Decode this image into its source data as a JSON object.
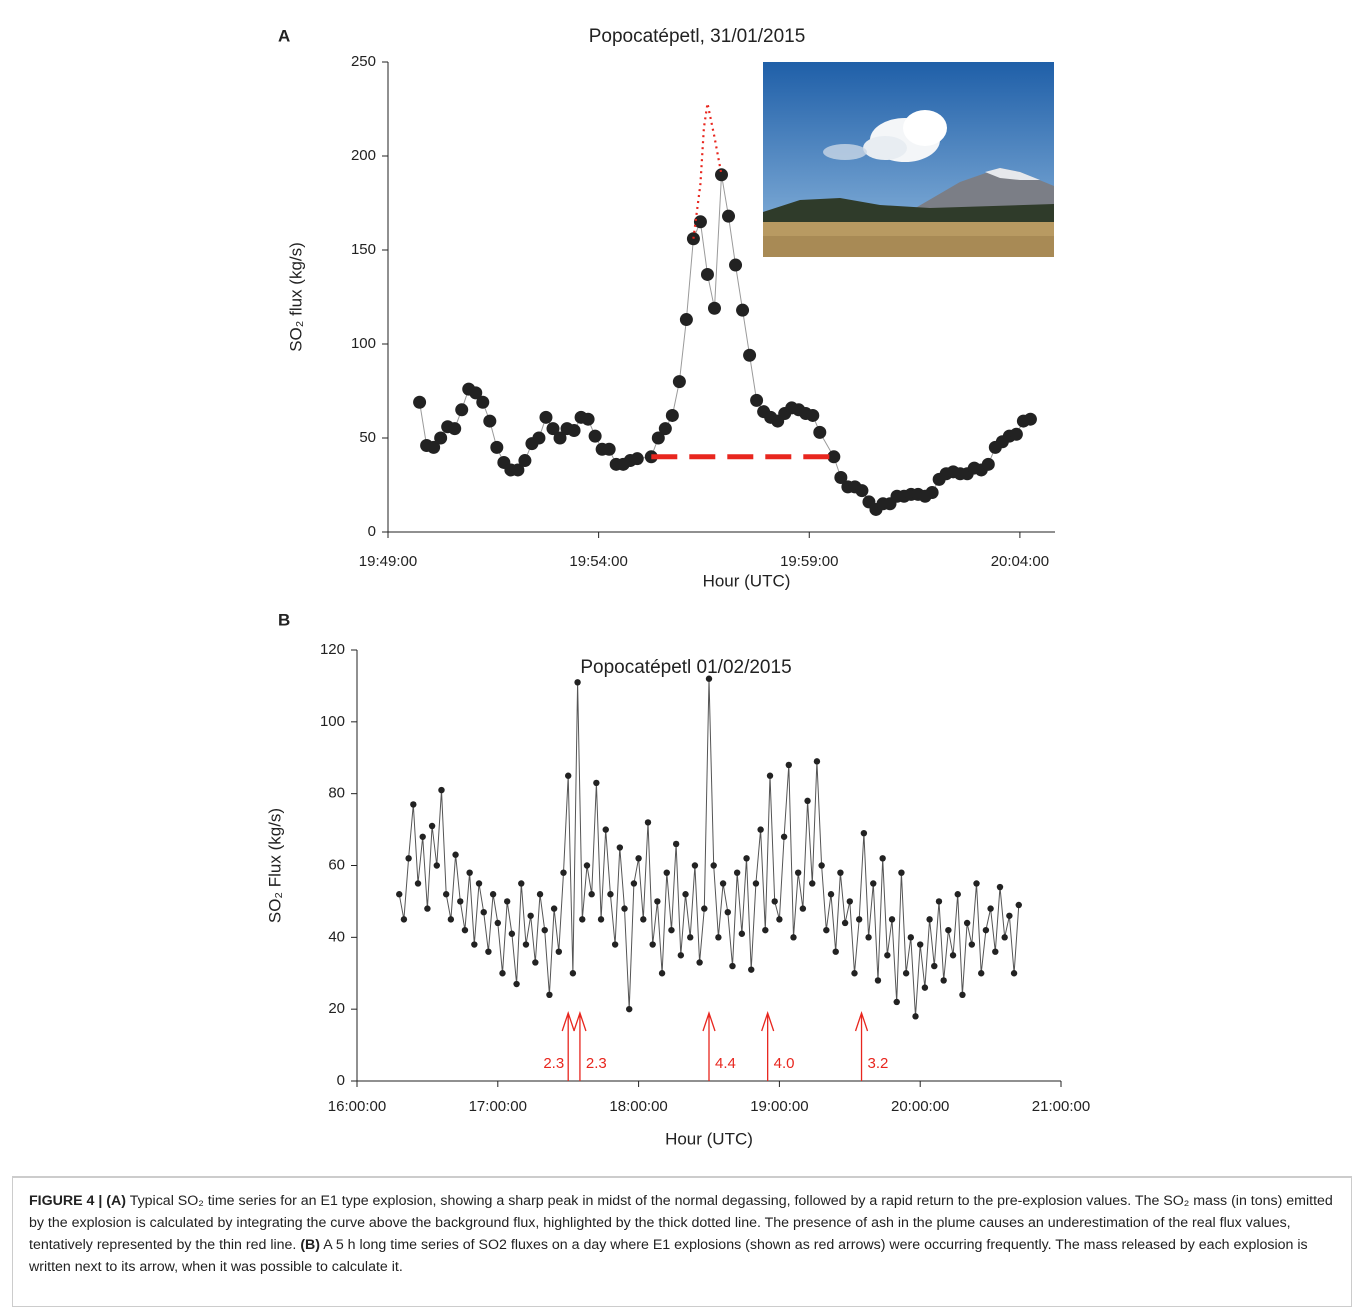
{
  "chart_data": [
    {
      "type": "line",
      "panel": "A",
      "title": "Popocatépetl, 31/01/2015",
      "xlabel": "Hour (UTC)",
      "ylabel": "SO₂ flux (kg/s)",
      "xlim": [
        "19:49:00",
        "20:04:50"
      ],
      "xticks": [
        "19:49:00",
        "19:54:00",
        "19:59:00",
        "20:04:00"
      ],
      "ylim": [
        0,
        250
      ],
      "yticks": [
        0,
        50,
        100,
        150,
        200,
        250
      ],
      "series": [
        {
          "color": "#222222",
          "line_color": "#9a9a9a",
          "marker": "circle",
          "x": [
            "19:49:45",
            "19:49:55",
            "19:50:05",
            "19:50:15",
            "19:50:25",
            "19:50:35",
            "19:50:45",
            "19:50:55",
            "19:51:05",
            "19:51:15",
            "19:51:25",
            "19:51:35",
            "19:51:45",
            "19:51:55",
            "19:52:05",
            "19:52:15",
            "19:52:25",
            "19:52:35",
            "19:52:45",
            "19:52:55",
            "19:53:05",
            "19:53:15",
            "19:53:25",
            "19:53:35",
            "19:53:45",
            "19:53:55",
            "19:54:05",
            "19:54:15",
            "19:54:25",
            "19:54:35",
            "19:54:45",
            "19:54:55",
            "19:55:15",
            "19:55:25",
            "19:55:35",
            "19:55:45",
            "19:55:55",
            "19:56:05",
            "19:56:15",
            "19:56:25",
            "19:56:35",
            "19:56:45",
            "19:56:55",
            "19:57:05",
            "19:57:15",
            "19:57:25",
            "19:57:35",
            "19:57:45",
            "19:57:55",
            "19:58:05",
            "19:58:15",
            "19:58:25",
            "19:58:35",
            "19:58:45",
            "19:58:55",
            "19:59:05",
            "19:59:15",
            "19:59:35",
            "19:59:45",
            "19:59:55",
            "20:00:05",
            "20:00:15",
            "20:00:25",
            "20:00:35",
            "20:00:45",
            "20:00:55",
            "20:01:05",
            "20:01:15",
            "20:01:25",
            "20:01:35",
            "20:01:45",
            "20:01:55",
            "20:02:05",
            "20:02:15",
            "20:02:25",
            "20:02:35",
            "20:02:45",
            "20:02:55",
            "20:03:05",
            "20:03:15",
            "20:03:25",
            "20:03:35",
            "20:03:45",
            "20:03:55",
            "20:04:05",
            "20:04:15"
          ],
          "values": [
            69,
            46,
            45,
            50,
            56,
            55,
            65,
            76,
            74,
            69,
            59,
            45,
            37,
            33,
            33,
            38,
            47,
            50,
            61,
            55,
            50,
            55,
            54,
            61,
            60,
            51,
            44,
            44,
            36,
            36,
            38,
            39,
            40,
            50,
            55,
            62,
            80,
            113,
            156,
            165,
            137,
            119,
            190,
            168,
            142,
            118,
            94,
            70,
            64,
            61,
            59,
            63,
            66,
            65,
            63,
            62,
            53,
            40,
            29,
            24,
            24,
            22,
            16,
            12,
            15,
            15,
            19,
            19,
            20,
            20,
            19,
            21,
            28,
            31,
            32,
            31,
            31,
            34,
            33,
            36,
            45,
            48,
            51,
            52,
            59,
            60
          ]
        },
        {
          "color": "#e8261e",
          "style": "dashed",
          "x": [
            "19:55:15",
            "19:59:35"
          ],
          "values": [
            40,
            40
          ]
        },
        {
          "color": "#e8261e",
          "style": "dotted",
          "x": [
            "19:56:15",
            "19:56:25",
            "19:56:30",
            "19:56:35",
            "19:56:45",
            "19:56:55"
          ],
          "values": [
            156,
            185,
            215,
            228,
            210,
            190
          ]
        }
      ]
    },
    {
      "type": "line",
      "panel": "B",
      "title": "Popocatépetl 01/02/2015",
      "xlabel": "Hour (UTC)",
      "ylabel": "SO₂ Flux (kg/s)",
      "xlim": [
        "16:00:00",
        "21:00:00"
      ],
      "xticks": [
        "16:00:00",
        "17:00:00",
        "18:00:00",
        "19:00:00",
        "20:00:00",
        "21:00:00"
      ],
      "ylim": [
        0,
        120
      ],
      "yticks": [
        0,
        20,
        40,
        60,
        80,
        100,
        120
      ],
      "series": [
        {
          "color": "#222222",
          "line_color": "#555555",
          "marker": "circle",
          "x": [
            "16:18:00",
            "16:20:00",
            "16:22:00",
            "16:24:00",
            "16:26:00",
            "16:28:00",
            "16:30:00",
            "16:32:00",
            "16:34:00",
            "16:36:00",
            "16:38:00",
            "16:40:00",
            "16:42:00",
            "16:44:00",
            "16:46:00",
            "16:48:00",
            "16:50:00",
            "16:52:00",
            "16:54:00",
            "16:56:00",
            "16:58:00",
            "17:00:00",
            "17:02:00",
            "17:04:00",
            "17:06:00",
            "17:08:00",
            "17:10:00",
            "17:12:00",
            "17:14:00",
            "17:16:00",
            "17:18:00",
            "17:20:00",
            "17:22:00",
            "17:24:00",
            "17:26:00",
            "17:28:00",
            "17:30:00",
            "17:32:00",
            "17:34:00",
            "17:36:00",
            "17:38:00",
            "17:40:00",
            "17:42:00",
            "17:44:00",
            "17:46:00",
            "17:48:00",
            "17:50:00",
            "17:52:00",
            "17:54:00",
            "17:56:00",
            "17:58:00",
            "18:00:00",
            "18:02:00",
            "18:04:00",
            "18:06:00",
            "18:08:00",
            "18:10:00",
            "18:12:00",
            "18:14:00",
            "18:16:00",
            "18:18:00",
            "18:20:00",
            "18:22:00",
            "18:24:00",
            "18:26:00",
            "18:28:00",
            "18:30:00",
            "18:32:00",
            "18:34:00",
            "18:36:00",
            "18:38:00",
            "18:40:00",
            "18:42:00",
            "18:44:00",
            "18:46:00",
            "18:48:00",
            "18:50:00",
            "18:52:00",
            "18:54:00",
            "18:56:00",
            "18:58:00",
            "19:00:00",
            "19:02:00",
            "19:04:00",
            "19:06:00",
            "19:08:00",
            "19:10:00",
            "19:12:00",
            "19:14:00",
            "19:16:00",
            "19:18:00",
            "19:20:00",
            "19:22:00",
            "19:24:00",
            "19:26:00",
            "19:28:00",
            "19:30:00",
            "19:32:00",
            "19:34:00",
            "19:36:00",
            "19:38:00",
            "19:40:00",
            "19:42:00",
            "19:44:00",
            "19:46:00",
            "19:48:00",
            "19:50:00",
            "19:52:00",
            "19:54:00",
            "19:56:00",
            "19:58:00",
            "20:00:00",
            "20:02:00",
            "20:04:00",
            "20:06:00",
            "20:08:00",
            "20:10:00",
            "20:12:00",
            "20:14:00",
            "20:16:00",
            "20:18:00",
            "20:20:00",
            "20:22:00",
            "20:24:00",
            "20:26:00",
            "20:28:00",
            "20:30:00",
            "20:32:00",
            "20:34:00",
            "20:36:00",
            "20:38:00",
            "20:40:00",
            "20:42:00"
          ],
          "values": [
            52,
            45,
            62,
            77,
            55,
            68,
            48,
            71,
            60,
            81,
            52,
            45,
            63,
            50,
            42,
            58,
            38,
            55,
            47,
            36,
            52,
            44,
            30,
            50,
            41,
            27,
            55,
            38,
            46,
            33,
            52,
            42,
            24,
            48,
            36,
            58,
            85,
            30,
            111,
            45,
            60,
            52,
            83,
            45,
            70,
            52,
            38,
            65,
            48,
            20,
            55,
            62,
            45,
            72,
            38,
            50,
            30,
            58,
            42,
            66,
            35,
            52,
            40,
            60,
            33,
            48,
            112,
            60,
            40,
            55,
            47,
            32,
            58,
            41,
            62,
            31,
            55,
            70,
            42,
            85,
            50,
            45,
            68,
            88,
            40,
            58,
            48,
            78,
            55,
            89,
            60,
            42,
            52,
            36,
            58,
            44,
            50,
            30,
            45,
            69,
            40,
            55,
            28,
            62,
            35,
            45,
            22,
            58,
            30,
            40,
            18,
            38,
            26,
            45,
            32,
            50,
            28,
            42,
            35,
            52,
            24,
            44,
            38,
            55,
            30,
            42,
            48,
            36,
            54,
            40,
            46,
            30,
            49
          ]
        }
      ],
      "annotation_color": "#e8261e",
      "annotations": [
        {
          "x": "17:30:00",
          "value": 2.3,
          "side": "left"
        },
        {
          "x": "17:35:00",
          "value": 2.3,
          "side": "right"
        },
        {
          "x": "18:30:00",
          "value": 4.4,
          "side": "right"
        },
        {
          "x": "18:55:00",
          "value": 4.0,
          "label": "4.0",
          "side": "right"
        },
        {
          "x": "19:35:00",
          "value": 3.2,
          "side": "right"
        }
      ]
    }
  ],
  "caption": {
    "label": "FIGURE 4 |",
    "parts": [
      {
        "tag": "(A)",
        "text": "Typical SO₂ time series for an E1 type explosion, showing a sharp peak in midst of the normal degassing, followed by a rapid return to the pre-explosion values. The SO₂ mass (in tons) emitted by the explosion is calculated by integrating the curve above the background flux, highlighted by the thick dotted line. The presence of ash in the plume causes an underestimation of the real flux values, tentatively represented by the thin red line."
      },
      {
        "tag": "(B)",
        "text": "A 5 h long time series of SO2 fluxes on a day where E1 explosions (shown as red arrows) were occurring frequently. The mass released by each explosion is written next to its arrow, when it was possible to calculate it."
      }
    ]
  }
}
